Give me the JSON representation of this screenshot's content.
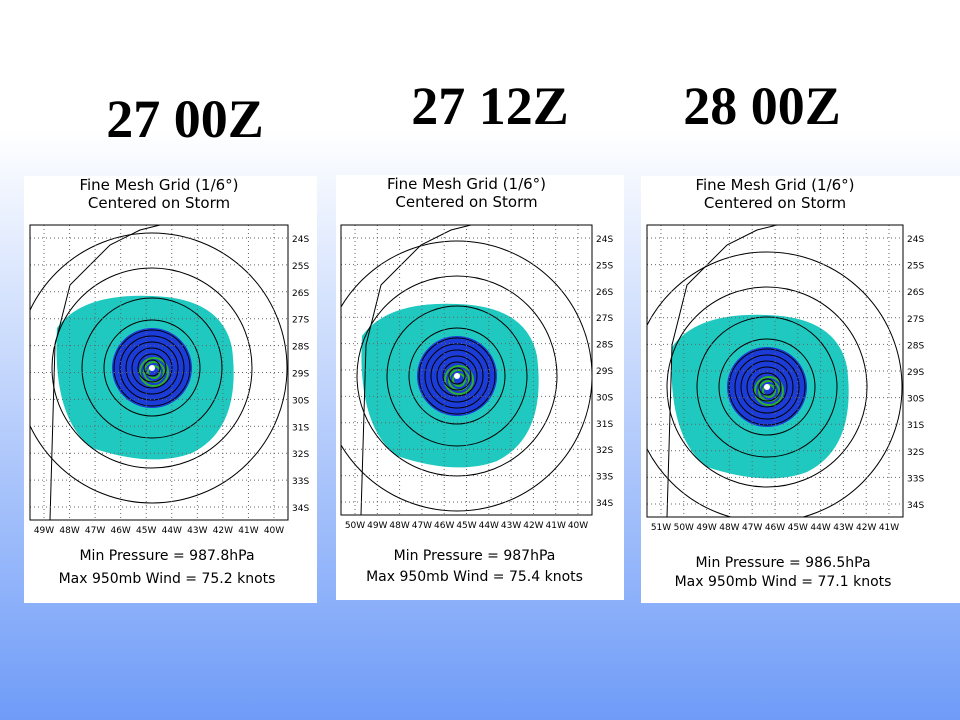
{
  "headings": [
    "27 00Z",
    "27 12Z",
    "28 00Z"
  ],
  "panels": [
    {
      "title": "Fine Mesh Grid (1/6°)",
      "subtitle": "Centered on Storm",
      "lat_labels": [
        "24S",
        "25S",
        "26S",
        "27S",
        "28S",
        "29S",
        "30S",
        "31S",
        "32S",
        "33S",
        "34S"
      ],
      "lon_labels": [
        "49W",
        "48W",
        "47W",
        "46W",
        "45W",
        "44W",
        "43W",
        "42W",
        "41W",
        "40W"
      ],
      "pressure": "Min Pressure = 987.8hPa",
      "wind": "Max 950mb Wind = 75.2 knots"
    },
    {
      "title": "Fine Mesh Grid (1/6°)",
      "subtitle": "Centered on Storm",
      "lat_labels": [
        "24S",
        "25S",
        "26S",
        "27S",
        "28S",
        "29S",
        "30S",
        "31S",
        "32S",
        "33S",
        "34S"
      ],
      "lon_labels": [
        "50W",
        "49W",
        "48W",
        "47W",
        "46W",
        "45W",
        "44W",
        "43W",
        "42W",
        "41W",
        "40W"
      ],
      "pressure": "Min Pressure = 987hPa",
      "wind": "Max 950mb Wind = 75.4 knots"
    },
    {
      "title": "Fine Mesh Grid (1/6°)",
      "subtitle": "Centered on Storm",
      "lat_labels": [
        "24S",
        "25S",
        "26S",
        "27S",
        "28S",
        "29S",
        "30S",
        "31S",
        "32S",
        "33S",
        "34S"
      ],
      "lon_labels": [
        "51W",
        "50W",
        "49W",
        "48W",
        "47W",
        "46W",
        "45W",
        "44W",
        "43W",
        "42W",
        "41W"
      ],
      "pressure": "Min Pressure = 986.5hPa",
      "wind": "Max 950mb Wind = 77.1 knots"
    }
  ]
}
